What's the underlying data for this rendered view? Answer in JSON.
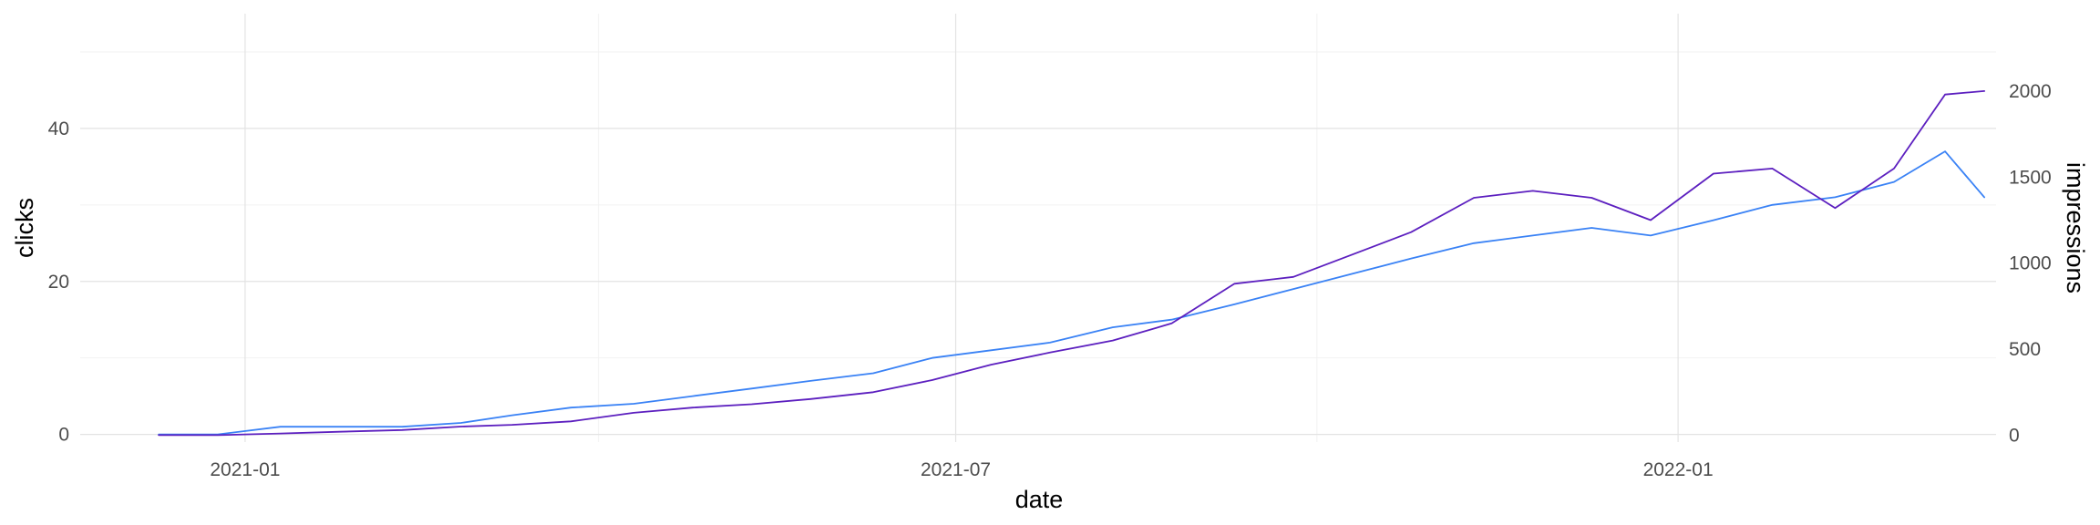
{
  "chart_data": {
    "type": "line",
    "title": "",
    "xlabel": "date",
    "ylabel": "clicks",
    "y2label": "impressions",
    "xlim": [
      "2020-11-20",
      "2022-03-23"
    ],
    "ylim": [
      -1,
      55
    ],
    "y2lim": [
      -40,
      2450
    ],
    "x_ticks": [
      {
        "value": "2021-01-01",
        "label": "2021-01"
      },
      {
        "value": "2021-07-01",
        "label": "2021-07"
      },
      {
        "value": "2022-01-01",
        "label": "2022-01"
      }
    ],
    "x_minor_ticks": [
      "2020-10-01",
      "2021-04-01",
      "2021-10-01"
    ],
    "y_ticks": [
      0,
      20,
      40
    ],
    "y_minor_ticks": [
      10,
      30,
      50
    ],
    "y2_ticks": [
      0,
      500,
      1000,
      1500,
      2000
    ],
    "grid": true,
    "legend": "none",
    "series": [
      {
        "axis": "left",
        "color": "#3a82f5",
        "points": [
          [
            "2020-12-10",
            0
          ],
          [
            "2020-12-25",
            0
          ],
          [
            "2021-01-10",
            1
          ],
          [
            "2021-01-25",
            1
          ],
          [
            "2021-02-10",
            1
          ],
          [
            "2021-02-25",
            1.5
          ],
          [
            "2021-03-10",
            2.5
          ],
          [
            "2021-03-25",
            3.5
          ],
          [
            "2021-04-10",
            4
          ],
          [
            "2021-04-25",
            5
          ],
          [
            "2021-05-10",
            6
          ],
          [
            "2021-05-25",
            7
          ],
          [
            "2021-06-10",
            8
          ],
          [
            "2021-06-25",
            10
          ],
          [
            "2021-07-10",
            11
          ],
          [
            "2021-07-25",
            12
          ],
          [
            "2021-08-10",
            14
          ],
          [
            "2021-08-25",
            15
          ],
          [
            "2021-09-10",
            17
          ],
          [
            "2021-09-25",
            19
          ],
          [
            "2021-10-10",
            21
          ],
          [
            "2021-10-25",
            23
          ],
          [
            "2021-11-10",
            25
          ],
          [
            "2021-11-25",
            26
          ],
          [
            "2021-12-10",
            27
          ],
          [
            "2021-12-25",
            26
          ],
          [
            "2022-01-10",
            28
          ],
          [
            "2022-01-25",
            30
          ],
          [
            "2022-02-10",
            31
          ],
          [
            "2022-02-25",
            33
          ],
          [
            "2022-03-10",
            37
          ],
          [
            "2022-03-20",
            31
          ]
        ]
      },
      {
        "axis": "right",
        "color": "#5c1fbf",
        "points": [
          [
            "2020-12-10",
            0
          ],
          [
            "2020-12-25",
            0
          ],
          [
            "2021-01-10",
            10
          ],
          [
            "2021-01-25",
            20
          ],
          [
            "2021-02-10",
            30
          ],
          [
            "2021-02-25",
            50
          ],
          [
            "2021-03-10",
            60
          ],
          [
            "2021-03-25",
            80
          ],
          [
            "2021-04-10",
            130
          ],
          [
            "2021-04-25",
            160
          ],
          [
            "2021-05-10",
            180
          ],
          [
            "2021-05-25",
            210
          ],
          [
            "2021-06-10",
            250
          ],
          [
            "2021-06-25",
            320
          ],
          [
            "2021-07-10",
            410
          ],
          [
            "2021-07-25",
            480
          ],
          [
            "2021-08-10",
            550
          ],
          [
            "2021-08-25",
            650
          ],
          [
            "2021-09-10",
            880
          ],
          [
            "2021-09-25",
            920
          ],
          [
            "2021-10-10",
            1050
          ],
          [
            "2021-10-25",
            1180
          ],
          [
            "2021-11-10",
            1380
          ],
          [
            "2021-11-25",
            1420
          ],
          [
            "2021-12-10",
            1380
          ],
          [
            "2021-12-25",
            1250
          ],
          [
            "2022-01-10",
            1520
          ],
          [
            "2022-01-25",
            1550
          ],
          [
            "2022-02-10",
            1320
          ],
          [
            "2022-02-25",
            1550
          ],
          [
            "2022-03-10",
            1980
          ],
          [
            "2022-03-20",
            2000
          ]
        ]
      }
    ]
  }
}
